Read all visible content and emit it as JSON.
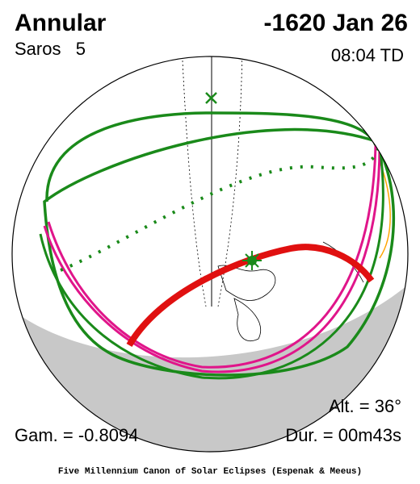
{
  "header": {
    "title": "Annular",
    "date": "-1620 Jan 26",
    "saros": "Saros   5",
    "time": "08:04 TD"
  },
  "stats": {
    "altitude": "Alt. = 36°",
    "gamma": "Gam. = -0.8094",
    "duration": "Dur. = 00m43s"
  },
  "footer": "Five Millennium Canon of Solar Eclipses (Espenak & Meeus)"
}
